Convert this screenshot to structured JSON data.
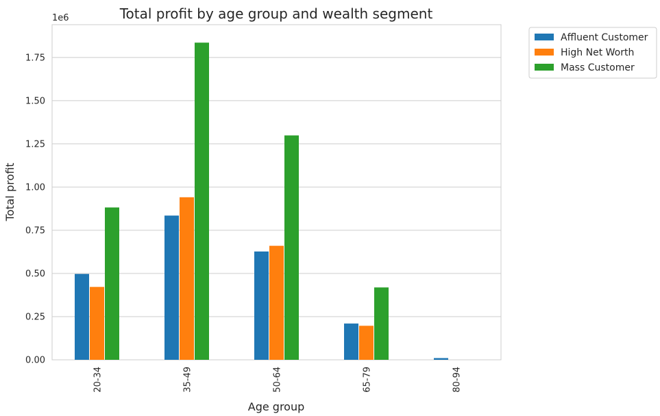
{
  "chart_data": {
    "type": "bar",
    "title": "Total profit by age group and wealth segment",
    "xlabel": "Age group",
    "ylabel": "Total profit",
    "y_offset_label": "1e6",
    "categories": [
      "20-34",
      "35-49",
      "50-64",
      "65-79",
      "80-94"
    ],
    "series": [
      {
        "name": "Affluent Customer",
        "color": "#1f77b4",
        "values": [
          0.497,
          0.835,
          0.627,
          0.21,
          0.01
        ]
      },
      {
        "name": "High Net Worth",
        "color": "#ff7f0e",
        "values": [
          0.422,
          0.941,
          0.66,
          0.197,
          0.0
        ]
      },
      {
        "name": "Mass Customer",
        "color": "#2ca02c",
        "values": [
          0.882,
          1.836,
          1.299,
          0.419,
          0.0
        ]
      }
    ],
    "ylim": [
      0,
      1.94
    ],
    "yticks": [
      0.0,
      0.25,
      0.5,
      0.75,
      1.0,
      1.25,
      1.5,
      1.75
    ],
    "ytick_labels": [
      "0.00",
      "0.25",
      "0.50",
      "0.75",
      "1.00",
      "1.25",
      "1.50",
      "1.75"
    ],
    "grid": "horizontal",
    "legend_position": "outside-top-right"
  }
}
